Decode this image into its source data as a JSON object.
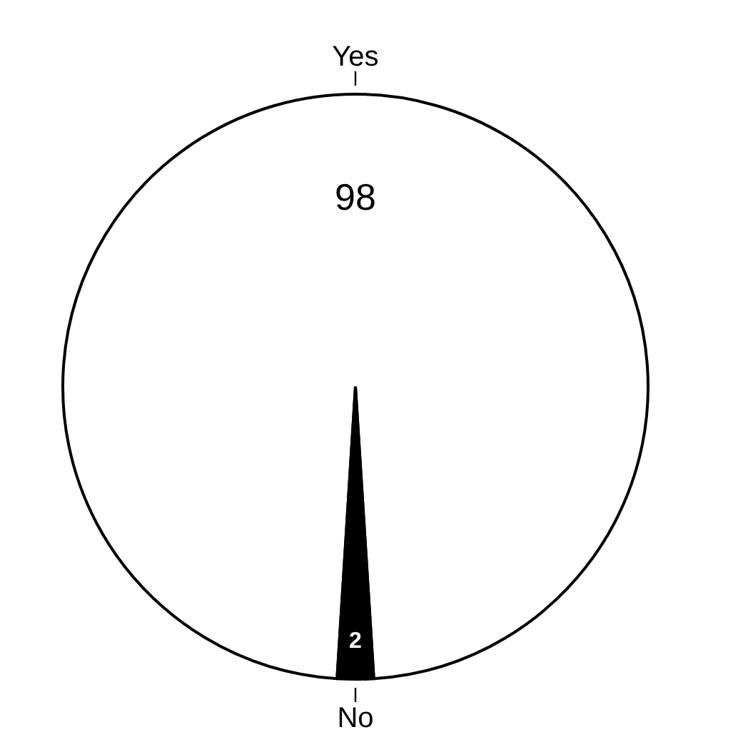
{
  "chart_data": {
    "type": "pie",
    "categories": [
      "Yes",
      "No"
    ],
    "values": [
      98,
      2
    ],
    "colors": [
      "#ffffff",
      "#000000"
    ],
    "data_labels": true
  }
}
